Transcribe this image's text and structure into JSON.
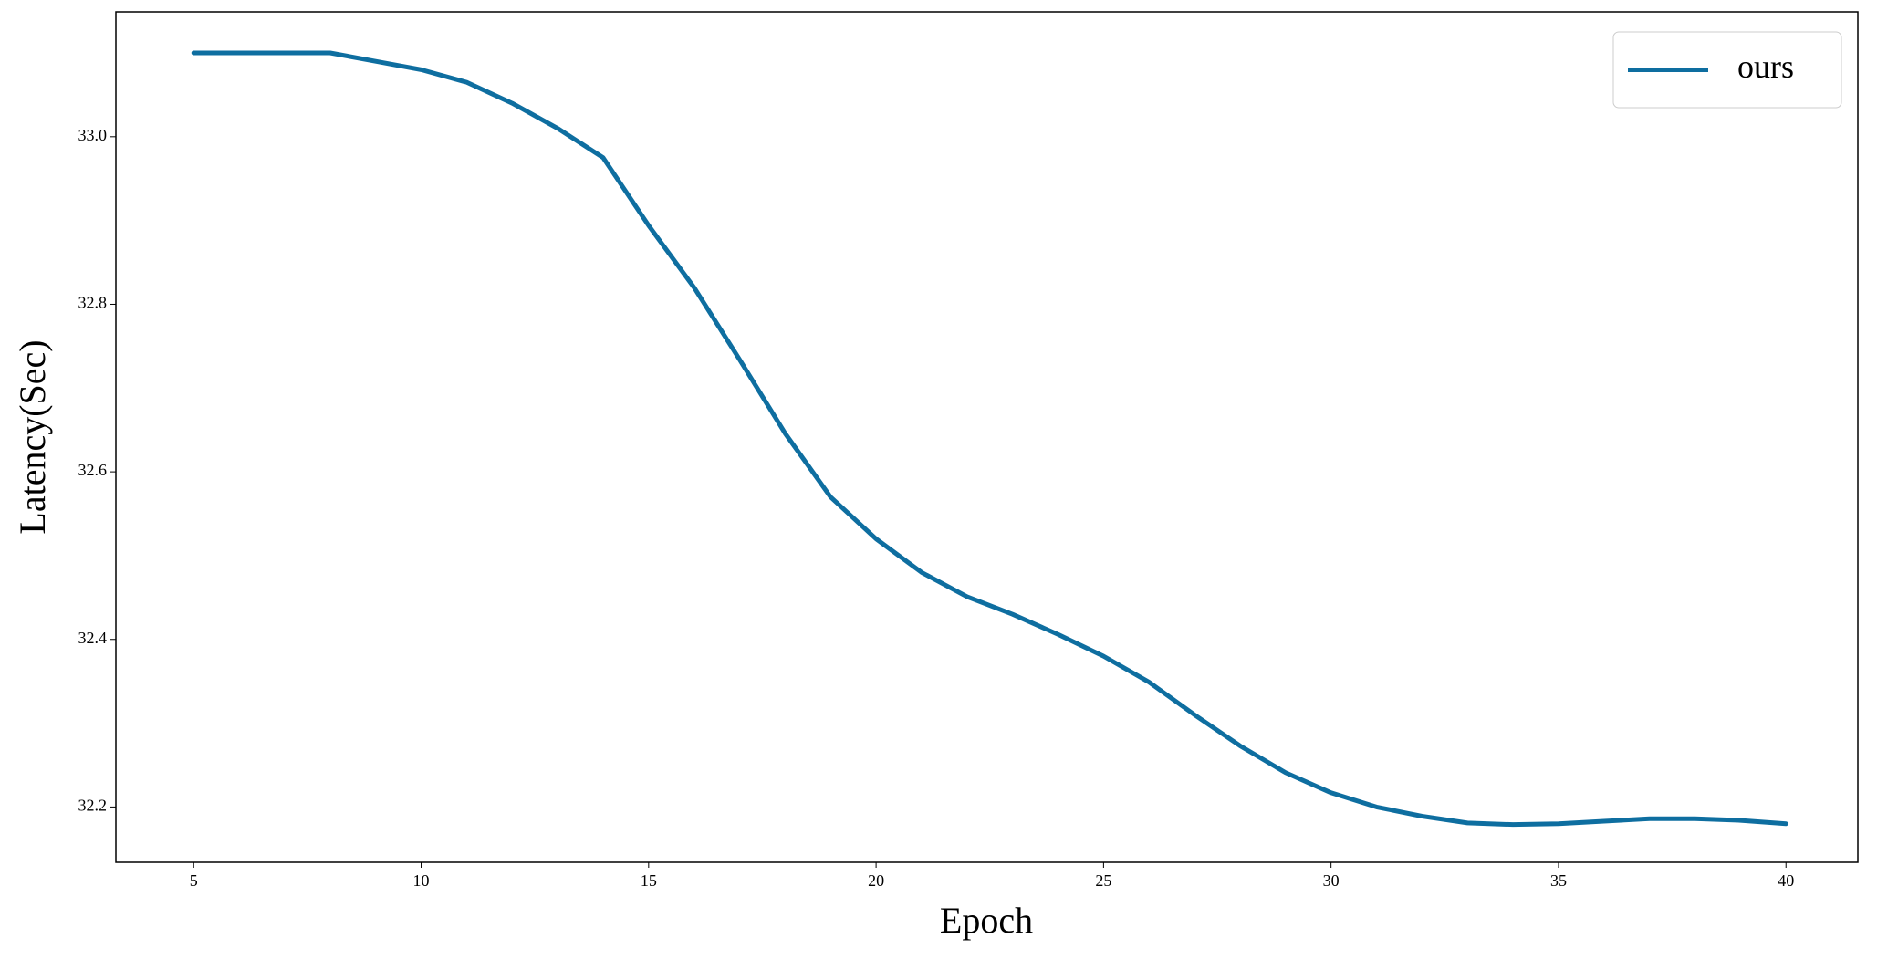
{
  "chart_data": {
    "type": "line",
    "x_label": "Epoch",
    "y_label": "Latency(Sec)",
    "x": [
      5,
      6,
      7,
      8,
      9,
      10,
      11,
      12,
      13,
      14,
      15,
      16,
      17,
      18,
      19,
      20,
      21,
      22,
      23,
      24,
      25,
      26,
      27,
      28,
      29,
      30,
      31,
      32,
      33,
      34,
      35,
      36,
      37,
      38,
      39,
      40
    ],
    "series": [
      {
        "name": "ours",
        "color": "#0e6ea0",
        "values": [
          33.1,
          33.1,
          33.1,
          33.1,
          33.09,
          33.08,
          33.065,
          33.04,
          33.01,
          32.975,
          32.894,
          32.82,
          32.734,
          32.646,
          32.57,
          32.52,
          32.48,
          32.451,
          32.43,
          32.406,
          32.38,
          32.349,
          32.31,
          32.273,
          32.241,
          32.217,
          32.2,
          32.189,
          32.181,
          32.179,
          32.18,
          32.183,
          32.186,
          32.186,
          32.184,
          32.18
        ]
      }
    ],
    "xlim": [
      3.29,
      41.58
    ],
    "ylim": [
      32.134,
      33.149
    ],
    "xticks": [
      5,
      10,
      15,
      20,
      25,
      30,
      35,
      40
    ],
    "yticks": [
      {
        "value": 32.2,
        "label": "32.2"
      },
      {
        "value": 32.4,
        "label": "32.4"
      },
      {
        "value": 32.6,
        "label": "32.6"
      },
      {
        "value": 32.8,
        "label": "32.8"
      },
      {
        "value": 33,
        "label": "33.0"
      }
    ],
    "grid": false,
    "legend": "upper right"
  }
}
